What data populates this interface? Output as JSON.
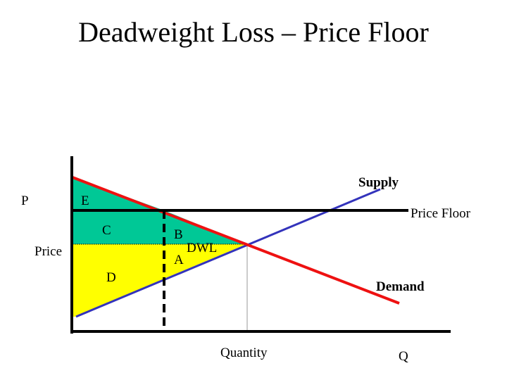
{
  "title": "Deadweight Loss – Price Floor",
  "labels": {
    "p_axis": "P",
    "q_axis": "Q",
    "price": "Price",
    "quantity": "Quantity",
    "supply": "Supply",
    "demand": "Demand",
    "price_floor": "Price Floor",
    "area_e": "E",
    "area_c": "C",
    "area_d": "D",
    "area_b": "B",
    "area_a": "A",
    "dwl": "DWL"
  },
  "colors": {
    "demand": "#ee1111",
    "supply": "#3333bb",
    "consumer_surplus_fill": "#00c896",
    "producer_surplus_fill": "#ffff00",
    "axis": "#000000",
    "price_floor_line": "#000000",
    "quantity_guide": "#bbbbbb"
  }
}
